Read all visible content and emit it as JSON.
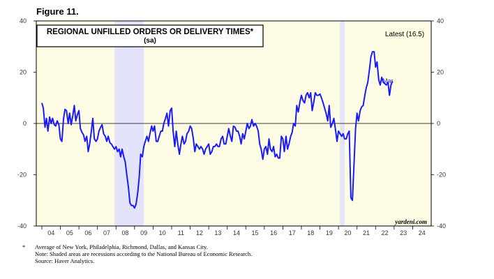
{
  "figure_label": "Figure 11.",
  "title_line1": "REGIONAL UNFILLED ORDERS OR DELIVERY TIMES*",
  "title_line2": "(sa)",
  "latest_label": "Latest (16.5)",
  "end_label": "Mar",
  "source_mark": "yardeni.com",
  "notes": {
    "line1": "Average of New York, Philadelphia, Richmond, Dallas, and Kansas City.",
    "line2": "Note: Shaded areas are recessions according to the National Bureau of Economic Research.",
    "line3": "Source: Haver Analytics.",
    "star": "*"
  },
  "colors": {
    "background": "#fdfbe3",
    "recession": "#e3e4fb",
    "series": "#1a1aff",
    "axis_text": "#333333"
  },
  "chart_data": {
    "type": "line",
    "yticks": [
      40,
      20,
      0,
      -20,
      -40
    ],
    "ylim": [
      -40,
      40
    ],
    "xlim": [
      2003.7,
      2025.0
    ],
    "xtick_labels": [
      "04",
      "05",
      "06",
      "07",
      "08",
      "09",
      "10",
      "11",
      "12",
      "13",
      "14",
      "15",
      "16",
      "17",
      "18",
      "19",
      "20",
      "21",
      "22",
      "23",
      "24"
    ],
    "recessions": [
      [
        2007.92,
        2009.5
      ],
      [
        2020.08,
        2020.33
      ]
    ],
    "series": [
      {
        "points": [
          [
            2004.0,
            8
          ],
          [
            2004.08,
            6
          ],
          [
            2004.17,
            -1.5
          ],
          [
            2004.25,
            2
          ],
          [
            2004.33,
            -3
          ],
          [
            2004.42,
            2.5
          ],
          [
            2004.5,
            0
          ],
          [
            2004.58,
            2
          ],
          [
            2004.67,
            -0.5
          ],
          [
            2004.75,
            -1
          ],
          [
            2004.83,
            1
          ],
          [
            2004.92,
            -0.5
          ],
          [
            2005.0,
            -6
          ],
          [
            2005.08,
            -7
          ],
          [
            2005.17,
            2
          ],
          [
            2005.25,
            5.5
          ],
          [
            2005.33,
            5
          ],
          [
            2005.42,
            0
          ],
          [
            2005.5,
            4
          ],
          [
            2005.58,
            -0.5
          ],
          [
            2005.67,
            3
          ],
          [
            2005.75,
            7
          ],
          [
            2005.83,
            1
          ],
          [
            2005.92,
            3.5
          ],
          [
            2006.0,
            5
          ],
          [
            2006.08,
            -2
          ],
          [
            2006.17,
            -3.5
          ],
          [
            2006.25,
            -4.5
          ],
          [
            2006.33,
            -7
          ],
          [
            2006.42,
            -5
          ],
          [
            2006.5,
            -11
          ],
          [
            2006.58,
            -8
          ],
          [
            2006.67,
            -3
          ],
          [
            2006.75,
            2
          ],
          [
            2006.83,
            -6
          ],
          [
            2006.92,
            -7
          ],
          [
            2007.0,
            -6
          ],
          [
            2007.08,
            -3
          ],
          [
            2007.17,
            -1.5
          ],
          [
            2007.25,
            -0.5
          ],
          [
            2007.33,
            -4
          ],
          [
            2007.42,
            -5
          ],
          [
            2007.5,
            -7
          ],
          [
            2007.58,
            -5
          ],
          [
            2007.67,
            -7.5
          ],
          [
            2007.75,
            -8
          ],
          [
            2007.83,
            -9
          ],
          [
            2007.92,
            -10
          ],
          [
            2008.0,
            -9
          ],
          [
            2008.08,
            -11
          ],
          [
            2008.17,
            -10
          ],
          [
            2008.25,
            -13
          ],
          [
            2008.33,
            -10
          ],
          [
            2008.42,
            -13
          ],
          [
            2008.5,
            -15
          ],
          [
            2008.58,
            -20
          ],
          [
            2008.67,
            -25
          ],
          [
            2008.75,
            -31
          ],
          [
            2008.83,
            -32
          ],
          [
            2008.92,
            -32
          ],
          [
            2009.0,
            -33
          ],
          [
            2009.08,
            -31.5
          ],
          [
            2009.17,
            -27
          ],
          [
            2009.25,
            -21
          ],
          [
            2009.33,
            -12
          ],
          [
            2009.42,
            -13
          ],
          [
            2009.5,
            -9
          ],
          [
            2009.58,
            -7
          ],
          [
            2009.67,
            -5
          ],
          [
            2009.75,
            -7
          ],
          [
            2009.83,
            -4
          ],
          [
            2009.92,
            -1
          ],
          [
            2010.0,
            -3
          ],
          [
            2010.08,
            -1
          ],
          [
            2010.17,
            -7
          ],
          [
            2010.25,
            -7
          ],
          [
            2010.33,
            -5
          ],
          [
            2010.42,
            -3
          ],
          [
            2010.5,
            -3
          ],
          [
            2010.58,
            0
          ],
          [
            2010.67,
            2
          ],
          [
            2010.75,
            4
          ],
          [
            2010.83,
            -1
          ],
          [
            2010.92,
            5
          ],
          [
            2011.0,
            6
          ],
          [
            2011.08,
            -3
          ],
          [
            2011.17,
            -9
          ],
          [
            2011.25,
            -3
          ],
          [
            2011.33,
            -8
          ],
          [
            2011.42,
            -12
          ],
          [
            2011.5,
            -8
          ],
          [
            2011.58,
            -5
          ],
          [
            2011.67,
            -8
          ],
          [
            2011.75,
            -7
          ],
          [
            2011.83,
            -4
          ],
          [
            2011.92,
            -3
          ],
          [
            2012.0,
            -1
          ],
          [
            2012.08,
            -2
          ],
          [
            2012.17,
            -6
          ],
          [
            2012.25,
            -11
          ],
          [
            2012.33,
            -8
          ],
          [
            2012.42,
            -9
          ],
          [
            2012.5,
            -10
          ],
          [
            2012.58,
            -9
          ],
          [
            2012.67,
            -10
          ],
          [
            2012.75,
            -12
          ],
          [
            2012.83,
            -10
          ],
          [
            2012.92,
            -9
          ],
          [
            2013.0,
            -8
          ],
          [
            2013.08,
            -12
          ],
          [
            2013.17,
            -11
          ],
          [
            2013.25,
            -9
          ],
          [
            2013.33,
            -9
          ],
          [
            2013.42,
            -8
          ],
          [
            2013.5,
            -9
          ],
          [
            2013.58,
            -9
          ],
          [
            2013.67,
            -6
          ],
          [
            2013.75,
            -5
          ],
          [
            2013.83,
            -8
          ],
          [
            2013.92,
            -8
          ],
          [
            2014.0,
            -5
          ],
          [
            2014.08,
            -2
          ],
          [
            2014.17,
            -5
          ],
          [
            2014.25,
            -7
          ],
          [
            2014.33,
            -1
          ],
          [
            2014.42,
            -1.5
          ],
          [
            2014.5,
            -3
          ],
          [
            2014.58,
            -3
          ],
          [
            2014.67,
            -5
          ],
          [
            2014.75,
            -8
          ],
          [
            2014.83,
            -4
          ],
          [
            2014.92,
            -6
          ],
          [
            2015.0,
            -3
          ],
          [
            2015.08,
            0
          ],
          [
            2015.17,
            -2
          ],
          [
            2015.25,
            -1
          ],
          [
            2015.33,
            1.5
          ],
          [
            2015.42,
            -1
          ],
          [
            2015.5,
            0
          ],
          [
            2015.58,
            -1
          ],
          [
            2015.67,
            -3
          ],
          [
            2015.75,
            -8
          ],
          [
            2015.83,
            -10
          ],
          [
            2015.92,
            -14
          ],
          [
            2016.0,
            -10
          ],
          [
            2016.08,
            -9
          ],
          [
            2016.17,
            -12
          ],
          [
            2016.25,
            -6
          ],
          [
            2016.33,
            -10
          ],
          [
            2016.42,
            -11
          ],
          [
            2016.5,
            -9
          ],
          [
            2016.58,
            -13
          ],
          [
            2016.67,
            -12
          ],
          [
            2016.75,
            -13.5
          ],
          [
            2016.83,
            -13.5
          ],
          [
            2016.92,
            -5
          ],
          [
            2017.0,
            -6
          ],
          [
            2017.08,
            -11
          ],
          [
            2017.17,
            -5
          ],
          [
            2017.25,
            -10
          ],
          [
            2017.33,
            -8
          ],
          [
            2017.42,
            -5
          ],
          [
            2017.5,
            -3.5
          ],
          [
            2017.58,
            0
          ],
          [
            2017.67,
            -1
          ],
          [
            2017.75,
            7
          ],
          [
            2017.83,
            4.5
          ],
          [
            2017.92,
            8.5
          ],
          [
            2018.0,
            11
          ],
          [
            2018.08,
            9
          ],
          [
            2018.17,
            8
          ],
          [
            2018.25,
            11
          ],
          [
            2018.33,
            12
          ],
          [
            2018.42,
            10
          ],
          [
            2018.5,
            12
          ],
          [
            2018.58,
            5
          ],
          [
            2018.67,
            8.5
          ],
          [
            2018.75,
            12
          ],
          [
            2018.83,
            11
          ],
          [
            2018.92,
            11
          ],
          [
            2019.0,
            11.5
          ],
          [
            2019.08,
            10
          ],
          [
            2019.17,
            8
          ],
          [
            2019.25,
            6
          ],
          [
            2019.33,
            4
          ],
          [
            2019.42,
            1
          ],
          [
            2019.5,
            7
          ],
          [
            2019.58,
            -1.5
          ],
          [
            2019.67,
            0
          ],
          [
            2019.75,
            2
          ],
          [
            2019.83,
            -2
          ],
          [
            2019.92,
            -7
          ],
          [
            2020.0,
            -3
          ],
          [
            2020.08,
            -4
          ],
          [
            2020.17,
            -5
          ],
          [
            2020.25,
            -4
          ],
          [
            2020.33,
            -6
          ],
          [
            2020.42,
            -6
          ],
          [
            2020.5,
            -4
          ],
          [
            2020.58,
            -3
          ],
          [
            2020.67,
            -29
          ],
          [
            2020.75,
            -30
          ],
          [
            2020.83,
            -17
          ],
          [
            2020.92,
            -2
          ],
          [
            2021.0,
            4
          ],
          [
            2021.08,
            1
          ],
          [
            2021.17,
            5
          ],
          [
            2021.25,
            6.5
          ],
          [
            2021.33,
            7
          ],
          [
            2021.42,
            11
          ],
          [
            2021.5,
            14
          ],
          [
            2021.58,
            16
          ],
          [
            2021.67,
            21
          ],
          [
            2021.75,
            26
          ],
          [
            2021.83,
            28
          ],
          [
            2021.92,
            28
          ],
          [
            2022.0,
            22
          ],
          [
            2022.08,
            24
          ],
          [
            2022.17,
            17
          ],
          [
            2022.25,
            15
          ],
          [
            2022.33,
            18
          ],
          [
            2022.42,
            16
          ],
          [
            2022.5,
            15.5
          ],
          [
            2022.58,
            15
          ],
          [
            2022.67,
            16
          ],
          [
            2022.75,
            11
          ],
          [
            2022.83,
            15
          ],
          [
            2022.92,
            16.5
          ]
        ]
      }
    ]
  }
}
